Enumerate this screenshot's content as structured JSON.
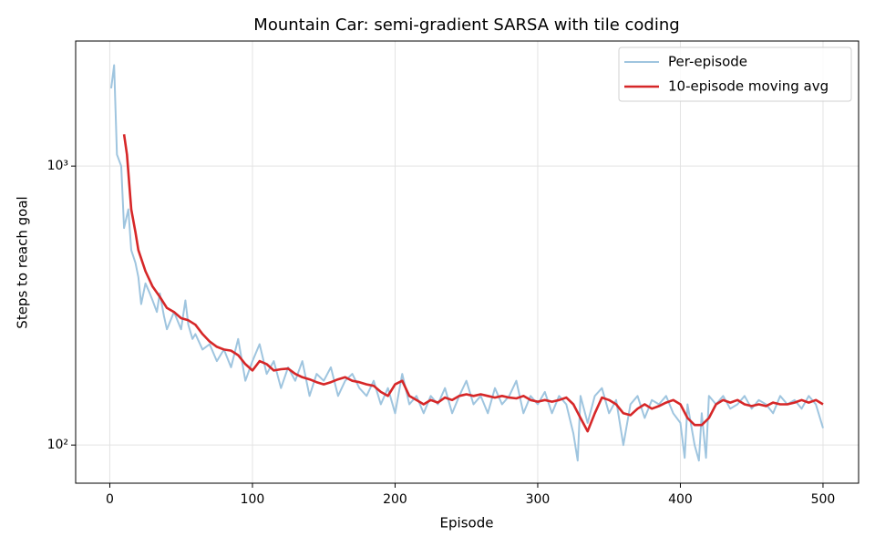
{
  "chart_data": {
    "type": "line",
    "title": "Mountain Car: semi-gradient SARSA with tile coding",
    "x_label": "Episode",
    "y_label": "Steps to reach goal",
    "xlim": [
      -23.95,
      524.95
    ],
    "xticks": [
      0,
      100,
      200,
      300,
      400,
      500
    ],
    "ylim": [
      73,
      2807
    ],
    "log_y": true,
    "yticks": [
      {
        "value": 100,
        "label": "10²"
      },
      {
        "value": 1000,
        "label": "10³"
      }
    ],
    "grid": true,
    "legend": "upper right",
    "series": [
      {
        "name": "Per-episode",
        "color": "#9fc5df",
        "x": [
          1,
          3,
          5,
          8,
          10,
          13,
          15,
          18,
          20,
          22,
          25,
          28,
          30,
          33,
          35,
          38,
          40,
          45,
          50,
          53,
          55,
          58,
          60,
          65,
          70,
          75,
          80,
          85,
          90,
          95,
          100,
          105,
          110,
          115,
          120,
          125,
          130,
          135,
          140,
          145,
          150,
          155,
          160,
          165,
          170,
          175,
          180,
          185,
          190,
          195,
          200,
          205,
          210,
          215,
          220,
          225,
          230,
          235,
          240,
          245,
          250,
          255,
          260,
          265,
          270,
          275,
          280,
          285,
          290,
          295,
          300,
          305,
          310,
          315,
          320,
          325,
          328,
          330,
          335,
          340,
          345,
          350,
          355,
          360,
          365,
          370,
          375,
          380,
          385,
          390,
          395,
          400,
          403,
          405,
          410,
          413,
          415,
          418,
          420,
          425,
          430,
          435,
          440,
          445,
          450,
          455,
          460,
          465,
          470,
          475,
          480,
          485,
          490,
          495,
          500
        ],
        "values": [
          1900,
          2300,
          1100,
          1000,
          600,
          700,
          500,
          450,
          400,
          320,
          380,
          350,
          330,
          300,
          350,
          290,
          260,
          300,
          260,
          330,
          270,
          240,
          250,
          220,
          230,
          200,
          220,
          190,
          240,
          170,
          200,
          230,
          180,
          200,
          160,
          190,
          170,
          200,
          150,
          180,
          170,
          190,
          150,
          170,
          180,
          160,
          150,
          170,
          140,
          160,
          130,
          180,
          140,
          150,
          130,
          150,
          140,
          160,
          130,
          150,
          170,
          140,
          150,
          130,
          160,
          140,
          150,
          170,
          130,
          150,
          140,
          155,
          130,
          150,
          140,
          110,
          88,
          150,
          120,
          150,
          160,
          130,
          145,
          100,
          140,
          150,
          125,
          145,
          140,
          150,
          130,
          120,
          90,
          140,
          100,
          88,
          130,
          90,
          150,
          140,
          150,
          135,
          140,
          150,
          135,
          145,
          140,
          130,
          150,
          140,
          145,
          135,
          150,
          140,
          115
        ]
      },
      {
        "name": "10-episode moving avg",
        "color": "#d62728",
        "x": [
          10,
          12,
          15,
          18,
          20,
          25,
          30,
          35,
          40,
          45,
          50,
          55,
          60,
          65,
          70,
          75,
          80,
          85,
          90,
          95,
          100,
          105,
          110,
          115,
          120,
          125,
          130,
          135,
          140,
          145,
          150,
          155,
          160,
          165,
          170,
          175,
          180,
          185,
          190,
          195,
          200,
          205,
          210,
          215,
          220,
          225,
          230,
          235,
          240,
          245,
          250,
          255,
          260,
          265,
          270,
          275,
          280,
          285,
          290,
          295,
          300,
          305,
          310,
          315,
          320,
          325,
          330,
          335,
          340,
          345,
          350,
          355,
          360,
          365,
          370,
          375,
          380,
          385,
          390,
          395,
          400,
          405,
          410,
          415,
          420,
          425,
          430,
          435,
          440,
          445,
          450,
          455,
          460,
          465,
          470,
          475,
          480,
          485,
          490,
          495,
          500
        ],
        "values": [
          1300,
          1100,
          700,
          580,
          500,
          420,
          370,
          340,
          310,
          300,
          285,
          280,
          270,
          250,
          235,
          225,
          220,
          218,
          210,
          195,
          185,
          200,
          195,
          185,
          187,
          188,
          180,
          175,
          172,
          168,
          165,
          168,
          172,
          175,
          170,
          168,
          165,
          163,
          155,
          150,
          165,
          170,
          150,
          145,
          140,
          145,
          142,
          148,
          145,
          150,
          152,
          150,
          152,
          150,
          148,
          150,
          148,
          147,
          150,
          145,
          143,
          145,
          143,
          145,
          148,
          140,
          125,
          112,
          130,
          148,
          145,
          140,
          130,
          128,
          135,
          140,
          135,
          138,
          142,
          145,
          140,
          125,
          118,
          118,
          125,
          140,
          145,
          142,
          145,
          140,
          138,
          140,
          138,
          142,
          140,
          140,
          142,
          145,
          142,
          145,
          140
        ]
      }
    ]
  }
}
